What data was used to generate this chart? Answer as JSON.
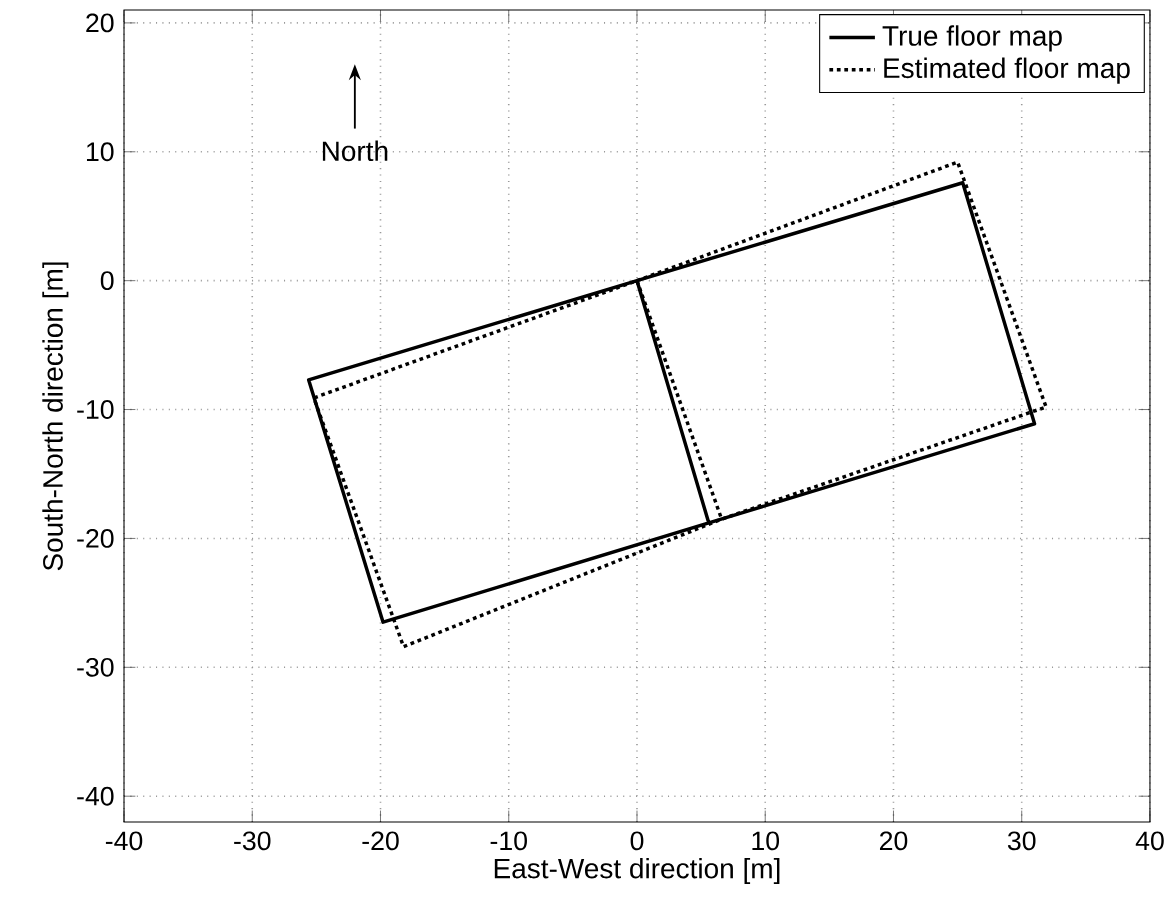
{
  "chart_data": {
    "type": "line",
    "xlabel": "East-West direction [m]",
    "ylabel": "South-North direction [m]",
    "xlim": [
      -40,
      40
    ],
    "ylim": [
      -42,
      21
    ],
    "xticks": [
      -40,
      -30,
      -20,
      -10,
      0,
      10,
      20,
      30,
      40
    ],
    "yticks": [
      -40,
      -30,
      -20,
      -10,
      0,
      10,
      20
    ],
    "grid": true,
    "legend": "top right",
    "marker": "none",
    "annotations": [
      "North"
    ],
    "series": [
      {
        "name": "True floor map",
        "color": "#000000",
        "line_style": "solid",
        "x": [
          0,
          25.4,
          31.0,
          5.6,
          0,
          -25.6,
          -19.8,
          5.6
        ],
        "values": [
          0,
          7.6,
          -11.1,
          -18.8,
          0,
          -7.7,
          -26.5,
          -18.8
        ]
      },
      {
        "name": "Estimated floor map",
        "color": "#000000",
        "line_style": "dotted",
        "x": [
          0,
          25.0,
          31.9,
          6.6,
          0,
          -25.2,
          -18.2,
          6.6
        ],
        "values": [
          0,
          9.2,
          -9.8,
          -18.5,
          0,
          -9.1,
          -28.4,
          -18.5
        ]
      }
    ]
  }
}
